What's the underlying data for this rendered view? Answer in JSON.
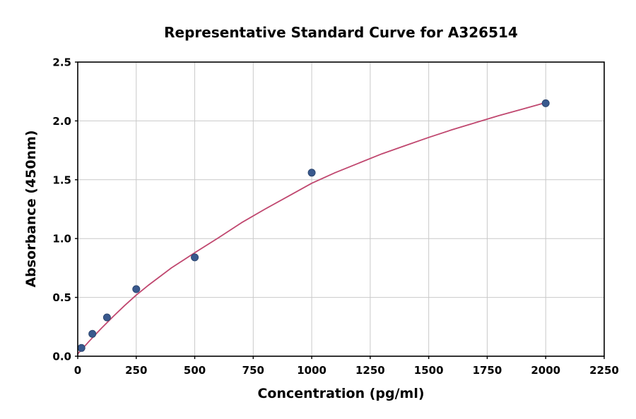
{
  "chart_data": {
    "type": "scatter",
    "title": "Representative Standard Curve for A326514",
    "xlabel": "Concentration (pg/ml)",
    "ylabel": "Absorbance (450nm)",
    "xlim": [
      0,
      2250
    ],
    "ylim": [
      0,
      2.5
    ],
    "x_ticks": [
      0,
      250,
      500,
      750,
      1000,
      1250,
      1500,
      1750,
      2000,
      2250
    ],
    "y_ticks": [
      0,
      0.5,
      1,
      1.5,
      2,
      2.5
    ],
    "y_tick_labels": [
      "0.0",
      "0.5",
      "1.0",
      "1.5",
      "2.0",
      "2.5"
    ],
    "grid": true,
    "legend": "none",
    "points": [
      {
        "x": 15.6,
        "y": 0.07
      },
      {
        "x": 62.5,
        "y": 0.19
      },
      {
        "x": 125,
        "y": 0.33
      },
      {
        "x": 250,
        "y": 0.57
      },
      {
        "x": 500,
        "y": 0.84
      },
      {
        "x": 1000,
        "y": 1.56
      },
      {
        "x": 2000,
        "y": 2.15
      }
    ],
    "curve": {
      "description": "4PL fitted standard curve",
      "x": [
        0,
        50,
        100,
        150,
        200,
        250,
        300,
        350,
        400,
        450,
        500,
        600,
        700,
        800,
        900,
        1000,
        1100,
        1200,
        1300,
        1400,
        1500,
        1600,
        1700,
        1800,
        1900,
        2000
      ],
      "y": [
        0.02,
        0.13,
        0.235,
        0.335,
        0.43,
        0.52,
        0.6,
        0.675,
        0.75,
        0.815,
        0.88,
        1.005,
        1.135,
        1.25,
        1.36,
        1.47,
        1.56,
        1.64,
        1.72,
        1.79,
        1.86,
        1.925,
        1.985,
        2.045,
        2.1,
        2.155
      ]
    },
    "colors": {
      "point": "#39598E",
      "point_edge": "#2D4770",
      "curve": "#C0476F",
      "grid": "#C9C9C9",
      "axis": "#000000",
      "background": "#FFFFFF"
    }
  }
}
